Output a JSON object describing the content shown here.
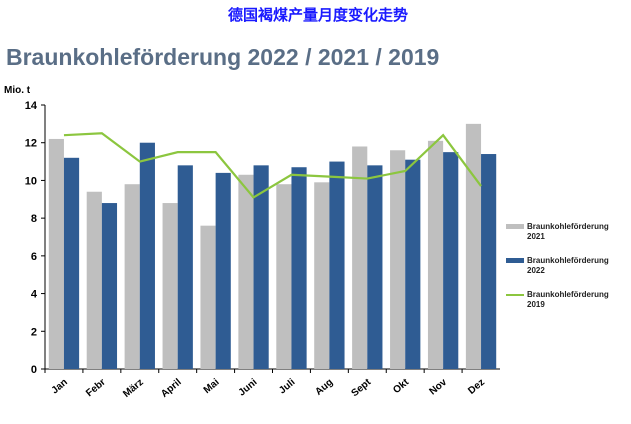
{
  "title_cn": "德国褐煤产量月度变化走势",
  "chart_data": {
    "type": "bar",
    "title": "Braunkohleförderung 2022 / 2021 / 2019",
    "y_label": "Mio. t",
    "categories": [
      "Jan",
      "Febr",
      "März",
      "April",
      "Mai",
      "Juni",
      "Juli",
      "Aug",
      "Sept",
      "Okt",
      "Nov",
      "Dez"
    ],
    "series": [
      {
        "name": "Braunkohleförderung 2021",
        "color": "#bfbfbf",
        "kind": "bar",
        "values": [
          12.2,
          9.4,
          9.8,
          8.8,
          7.6,
          10.3,
          9.8,
          9.9,
          11.8,
          11.6,
          12.1,
          13.0
        ]
      },
      {
        "name": "Braunkohleförderung 2022",
        "color": "#2f5c93",
        "kind": "bar",
        "values": [
          11.2,
          8.8,
          12.0,
          10.8,
          10.4,
          10.8,
          10.7,
          11.0,
          10.8,
          11.1,
          11.5,
          11.4
        ]
      },
      {
        "name": "Braunkohleförderung 2019",
        "color": "#8cc63f",
        "kind": "line",
        "values": [
          12.4,
          12.5,
          11.0,
          11.5,
          11.5,
          9.1,
          10.3,
          10.2,
          10.1,
          10.5,
          12.4,
          9.7
        ]
      }
    ],
    "ylim": [
      0,
      14
    ],
    "yticks": [
      0,
      2,
      4,
      6,
      8,
      10,
      12,
      14
    ]
  }
}
